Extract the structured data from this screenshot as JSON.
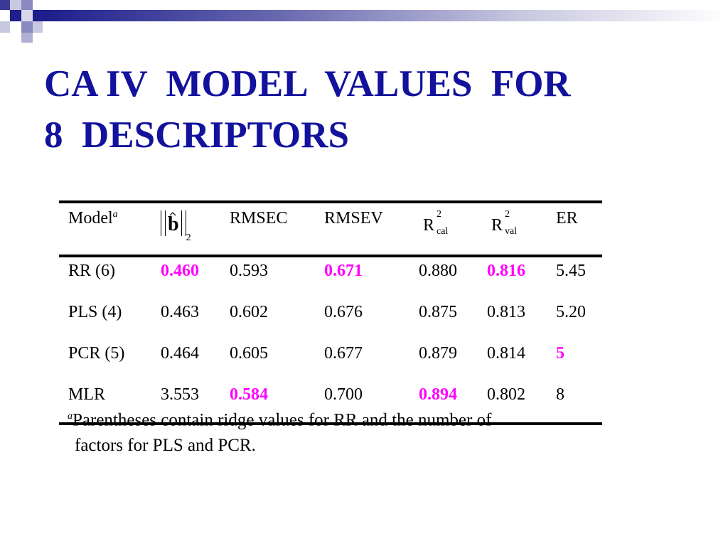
{
  "title_lines": [
    "CA IV  MODEL  VALUES  FOR",
    "8  DESCRIPTORS"
  ],
  "table": {
    "header": [
      {
        "text": "Model",
        "superscript": "a"
      },
      {
        "symbol": "b",
        "subscript": "2"
      },
      {
        "text": "RMSEC"
      },
      {
        "text": "RMSEV"
      },
      {
        "text": "R",
        "superscript": "2",
        "subscript": "cal"
      },
      {
        "text": "R",
        "superscript": "2",
        "subscript": "val"
      },
      {
        "text": "ER"
      }
    ],
    "rows": [
      [
        "RR (6)",
        {
          "text": "0.460",
          "bold": true
        },
        "0.593",
        {
          "text": "0.671",
          "bold": true
        },
        "0.880",
        {
          "text": "0.816",
          "bold": true
        },
        "5.45"
      ],
      [
        "PLS (4)",
        "0.463",
        "0.602",
        "0.676",
        "0.875",
        "0.813",
        "5.20"
      ],
      [
        "PCR (5)",
        "0.464",
        "0.605",
        "0.677",
        "0.879",
        "0.814",
        {
          "text": "5",
          "bold": true
        }
      ],
      [
        "MLR",
        "3.553",
        {
          "text": "0.584",
          "bold": true
        },
        "0.700",
        {
          "text": "0.894",
          "bold": true
        },
        "0.802",
        "8"
      ]
    ],
    "highlight_color": "#ff00ff"
  },
  "footnote": {
    "marker": "a",
    "lines": [
      "Parentheses contain ridge values for RR and the number of",
      "factors for PLS and PCR."
    ]
  }
}
